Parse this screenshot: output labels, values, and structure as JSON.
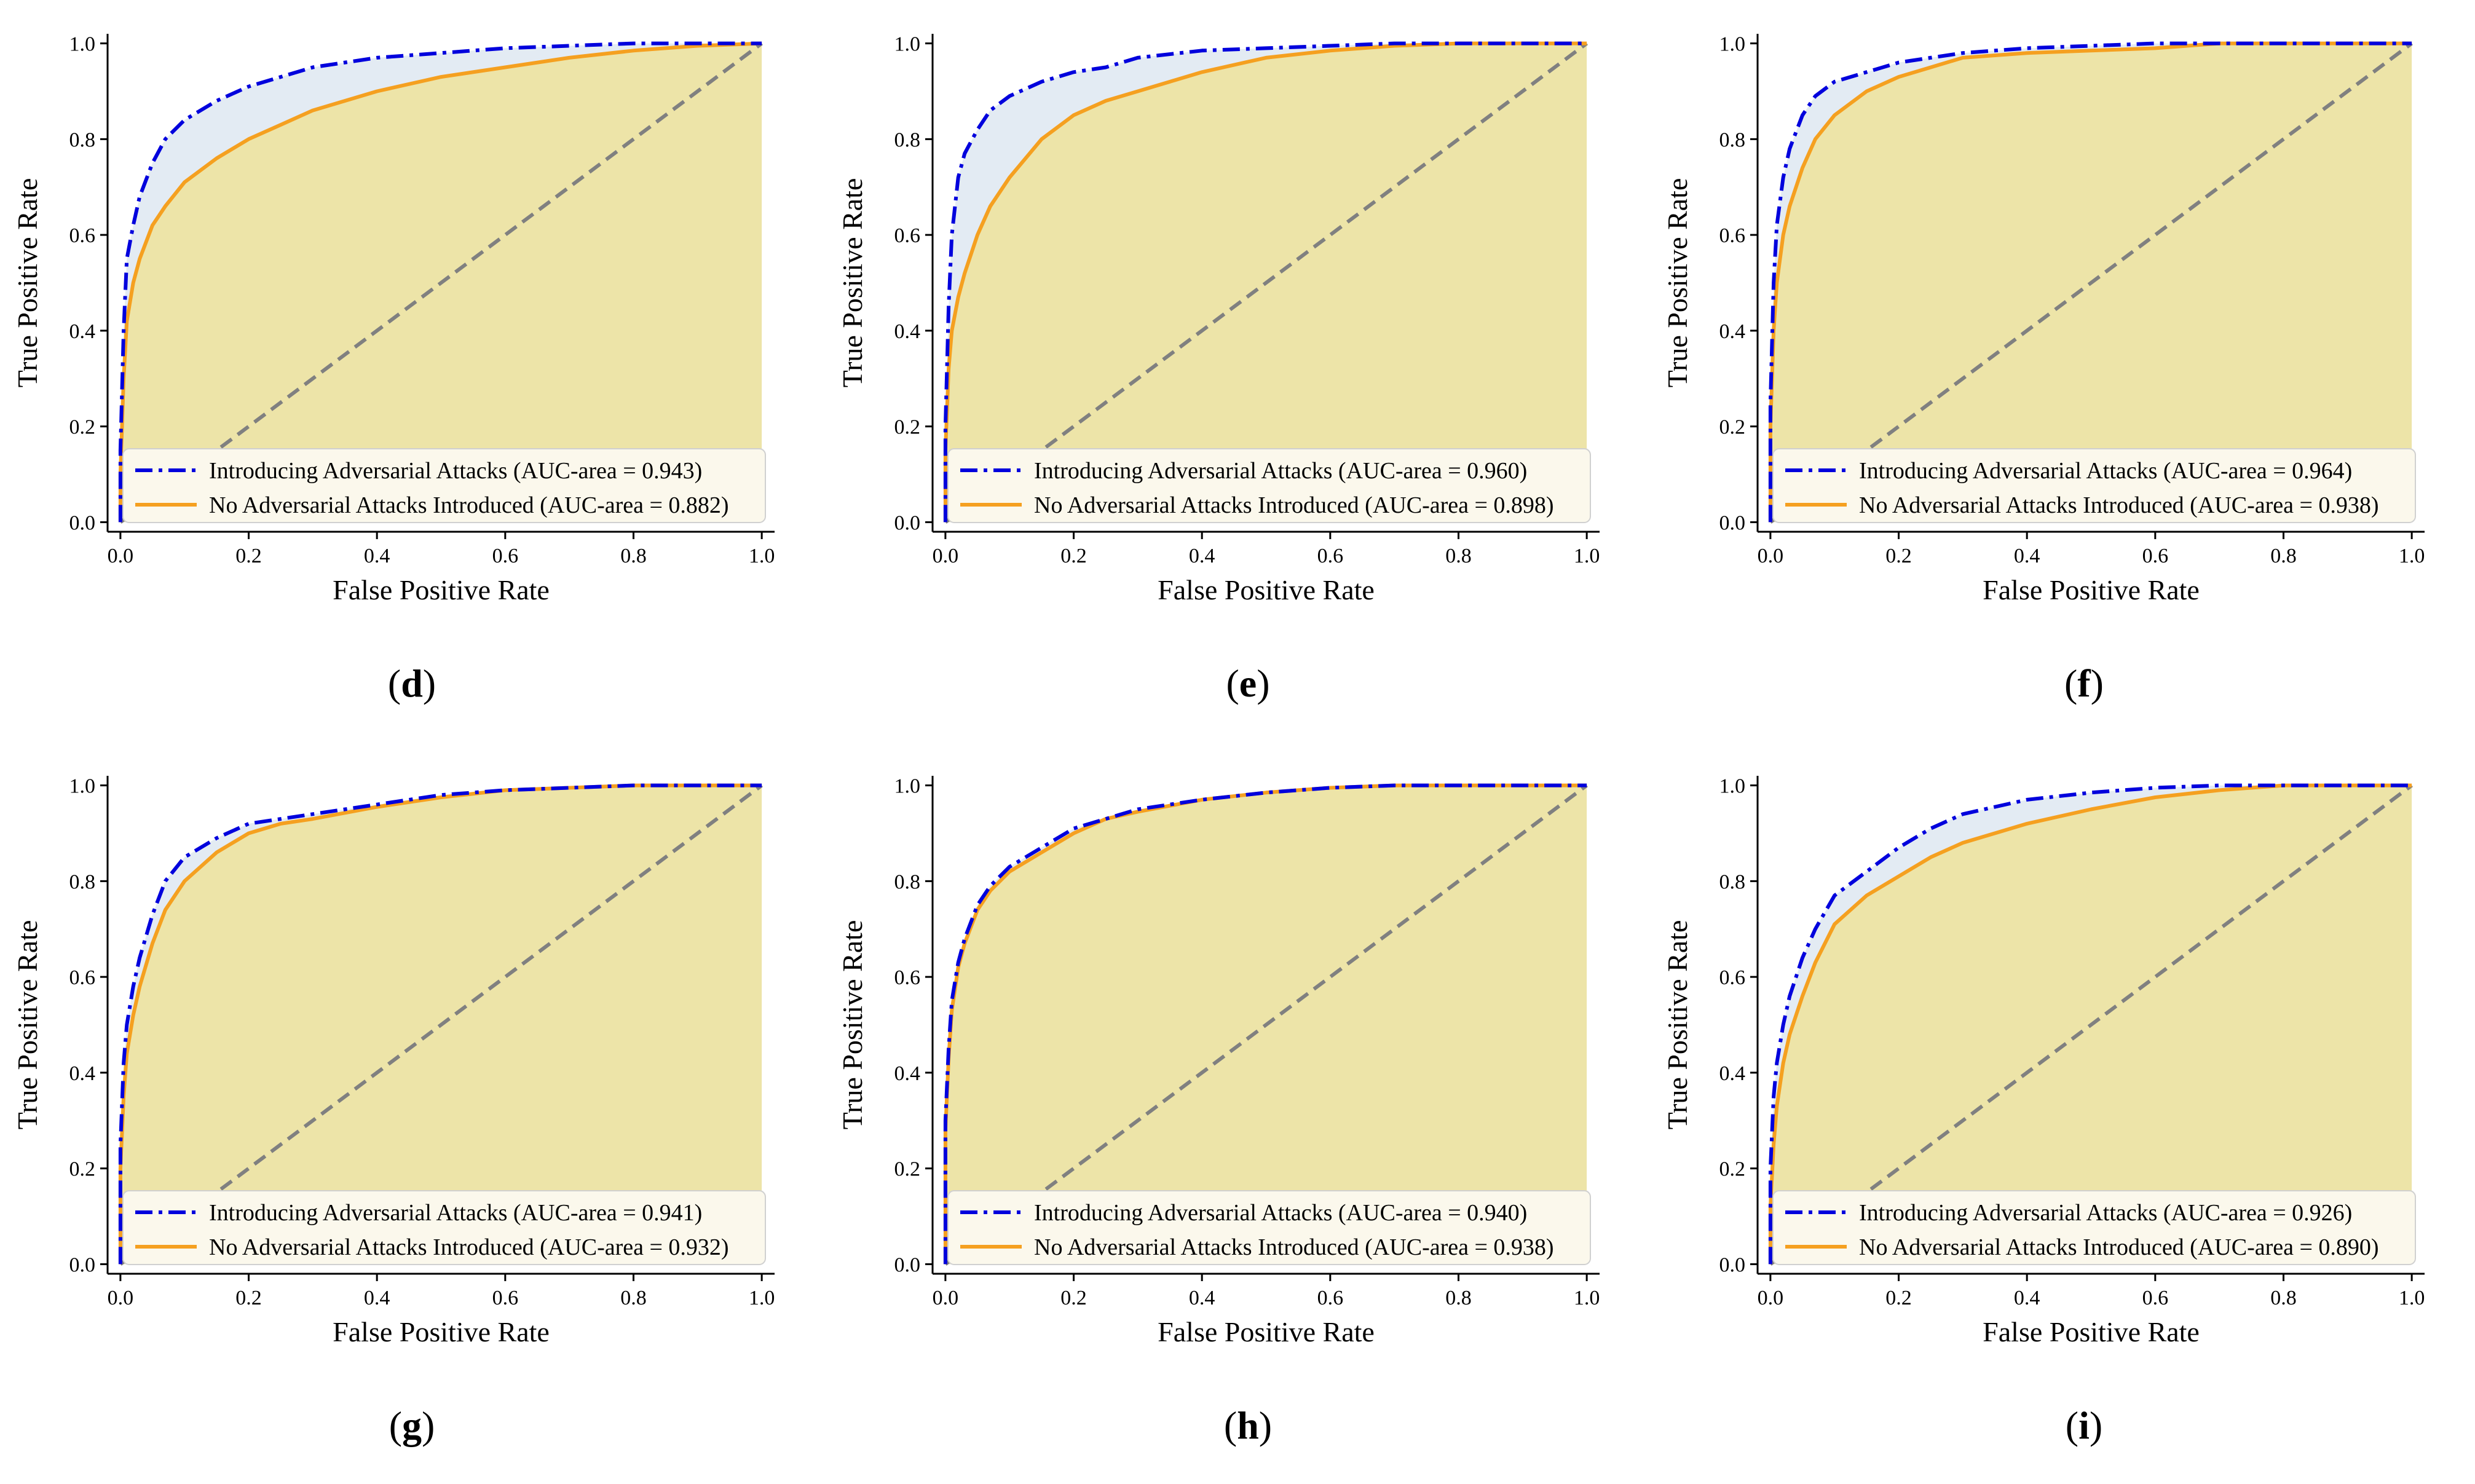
{
  "chart_data": [
    {
      "type": "line",
      "panel": "d",
      "xlabel": "False Positive Rate",
      "ylabel": "True Positive Rate",
      "xlim": [
        0,
        1
      ],
      "ylim": [
        0,
        1
      ],
      "xticks": [
        "0.0",
        "0.2",
        "0.4",
        "0.6",
        "0.8",
        "1.0"
      ],
      "yticks": [
        "0.0",
        "0.2",
        "0.4",
        "0.6",
        "0.8",
        "1.0"
      ],
      "legend_position": "bottom-right",
      "series": [
        {
          "name": "Introducing Adversarial Attacks (AUC-area = 0.943)",
          "color": "#0000dd",
          "style": "dashdot",
          "x": [
            0,
            0,
            0.005,
            0.01,
            0.02,
            0.03,
            0.05,
            0.07,
            0.1,
            0.15,
            0.2,
            0.25,
            0.3,
            0.4,
            0.5,
            0.6,
            0.7,
            0.8,
            0.9,
            1.0
          ],
          "y": [
            0,
            0.15,
            0.4,
            0.55,
            0.62,
            0.68,
            0.75,
            0.8,
            0.84,
            0.88,
            0.91,
            0.93,
            0.95,
            0.97,
            0.98,
            0.99,
            0.995,
            1.0,
            1.0,
            1.0
          ]
        },
        {
          "name": "No Adversarial Attacks Introduced (AUC-area = 0.882)",
          "color": "#f5a020",
          "style": "solid",
          "x": [
            0,
            0,
            0.005,
            0.01,
            0.02,
            0.03,
            0.05,
            0.07,
            0.1,
            0.15,
            0.2,
            0.25,
            0.3,
            0.4,
            0.5,
            0.6,
            0.7,
            0.8,
            0.9,
            1.0
          ],
          "y": [
            0,
            0.1,
            0.3,
            0.42,
            0.5,
            0.55,
            0.62,
            0.66,
            0.71,
            0.76,
            0.8,
            0.83,
            0.86,
            0.9,
            0.93,
            0.95,
            0.97,
            0.985,
            0.995,
            1.0
          ]
        }
      ]
    },
    {
      "type": "line",
      "panel": "e",
      "xlabel": "False Positive Rate",
      "ylabel": "True Positive Rate",
      "xlim": [
        0,
        1
      ],
      "ylim": [
        0,
        1
      ],
      "xticks": [
        "0.0",
        "0.2",
        "0.4",
        "0.6",
        "0.8",
        "1.0"
      ],
      "yticks": [
        "0.0",
        "0.2",
        "0.4",
        "0.6",
        "0.8",
        "1.0"
      ],
      "legend_position": "bottom-right",
      "series": [
        {
          "name": "Introducing Adversarial Attacks (AUC-area = 0.960)",
          "color": "#0000dd",
          "style": "dashdot",
          "x": [
            0,
            0,
            0.005,
            0.01,
            0.02,
            0.03,
            0.05,
            0.07,
            0.1,
            0.15,
            0.2,
            0.25,
            0.3,
            0.4,
            0.5,
            0.6,
            0.7,
            0.8,
            0.9,
            1.0
          ],
          "y": [
            0,
            0.2,
            0.45,
            0.6,
            0.72,
            0.77,
            0.82,
            0.86,
            0.89,
            0.92,
            0.94,
            0.95,
            0.97,
            0.985,
            0.99,
            0.995,
            1.0,
            1.0,
            1.0,
            1.0
          ]
        },
        {
          "name": "No Adversarial Attacks Introduced (AUC-area = 0.898)",
          "color": "#f5a020",
          "style": "solid",
          "x": [
            0,
            0,
            0.005,
            0.01,
            0.02,
            0.03,
            0.05,
            0.07,
            0.1,
            0.15,
            0.2,
            0.25,
            0.3,
            0.4,
            0.5,
            0.6,
            0.7,
            0.8,
            0.9,
            1.0
          ],
          "y": [
            0,
            0.15,
            0.32,
            0.4,
            0.47,
            0.52,
            0.6,
            0.66,
            0.72,
            0.8,
            0.85,
            0.88,
            0.9,
            0.94,
            0.97,
            0.985,
            0.995,
            1.0,
            1.0,
            1.0
          ]
        }
      ]
    },
    {
      "type": "line",
      "panel": "f",
      "xlabel": "False Positive Rate",
      "ylabel": "True Positive Rate",
      "xlim": [
        0,
        1
      ],
      "ylim": [
        0,
        1
      ],
      "xticks": [
        "0.0",
        "0.2",
        "0.4",
        "0.6",
        "0.8",
        "1.0"
      ],
      "yticks": [
        "0.0",
        "0.2",
        "0.4",
        "0.6",
        "0.8",
        "1.0"
      ],
      "legend_position": "bottom-right",
      "series": [
        {
          "name": "Introducing Adversarial Attacks (AUC-area = 0.964)",
          "color": "#0000dd",
          "style": "dashdot",
          "x": [
            0,
            0,
            0.005,
            0.01,
            0.02,
            0.03,
            0.05,
            0.07,
            0.1,
            0.15,
            0.2,
            0.25,
            0.3,
            0.4,
            0.5,
            0.6,
            0.7,
            0.8,
            0.9,
            1.0
          ],
          "y": [
            0,
            0.25,
            0.5,
            0.62,
            0.72,
            0.78,
            0.85,
            0.89,
            0.92,
            0.94,
            0.96,
            0.97,
            0.98,
            0.99,
            0.995,
            1.0,
            1.0,
            1.0,
            1.0,
            1.0
          ]
        },
        {
          "name": "No Adversarial Attacks Introduced (AUC-area = 0.938)",
          "color": "#f5a020",
          "style": "solid",
          "x": [
            0,
            0,
            0.005,
            0.01,
            0.02,
            0.03,
            0.05,
            0.07,
            0.1,
            0.15,
            0.2,
            0.25,
            0.3,
            0.4,
            0.5,
            0.6,
            0.7,
            0.8,
            0.9,
            1.0
          ],
          "y": [
            0,
            0.2,
            0.4,
            0.5,
            0.6,
            0.66,
            0.74,
            0.8,
            0.85,
            0.9,
            0.93,
            0.95,
            0.97,
            0.98,
            0.985,
            0.99,
            1.0,
            1.0,
            1.0,
            1.0
          ]
        }
      ]
    },
    {
      "type": "line",
      "panel": "g",
      "xlabel": "False Positive Rate",
      "ylabel": "True Positive Rate",
      "xlim": [
        0,
        1
      ],
      "ylim": [
        0,
        1
      ],
      "xticks": [
        "0.0",
        "0.2",
        "0.4",
        "0.6",
        "0.8",
        "1.0"
      ],
      "yticks": [
        "0.0",
        "0.2",
        "0.4",
        "0.6",
        "0.8",
        "1.0"
      ],
      "legend_position": "bottom-right",
      "series": [
        {
          "name": "Introducing Adversarial Attacks (AUC-area = 0.941)",
          "color": "#0000dd",
          "style": "dashdot",
          "x": [
            0,
            0,
            0.005,
            0.01,
            0.02,
            0.03,
            0.05,
            0.07,
            0.1,
            0.15,
            0.2,
            0.25,
            0.3,
            0.4,
            0.5,
            0.6,
            0.7,
            0.8,
            0.9,
            1.0
          ],
          "y": [
            0,
            0.25,
            0.42,
            0.5,
            0.58,
            0.64,
            0.73,
            0.8,
            0.85,
            0.89,
            0.92,
            0.93,
            0.94,
            0.96,
            0.98,
            0.99,
            0.995,
            1.0,
            1.0,
            1.0
          ]
        },
        {
          "name": "No Adversarial Attacks Introduced (AUC-area = 0.932)",
          "color": "#f5a020",
          "style": "solid",
          "x": [
            0,
            0,
            0.005,
            0.01,
            0.02,
            0.03,
            0.05,
            0.07,
            0.1,
            0.15,
            0.2,
            0.25,
            0.3,
            0.4,
            0.5,
            0.6,
            0.7,
            0.8,
            0.9,
            1.0
          ],
          "y": [
            0,
            0.2,
            0.35,
            0.44,
            0.52,
            0.58,
            0.67,
            0.74,
            0.8,
            0.86,
            0.9,
            0.92,
            0.93,
            0.955,
            0.975,
            0.99,
            0.995,
            1.0,
            1.0,
            1.0
          ]
        }
      ]
    },
    {
      "type": "line",
      "panel": "h",
      "xlabel": "False Positive Rate",
      "ylabel": "True Positive Rate",
      "xlim": [
        0,
        1
      ],
      "ylim": [
        0,
        1
      ],
      "xticks": [
        "0.0",
        "0.2",
        "0.4",
        "0.6",
        "0.8",
        "1.0"
      ],
      "yticks": [
        "0.0",
        "0.2",
        "0.4",
        "0.6",
        "0.8",
        "1.0"
      ],
      "legend_position": "bottom-right",
      "series": [
        {
          "name": "Introducing Adversarial Attacks (AUC-area = 0.940)",
          "color": "#0000dd",
          "style": "dashdot",
          "x": [
            0,
            0,
            0.005,
            0.01,
            0.02,
            0.03,
            0.05,
            0.07,
            0.1,
            0.15,
            0.2,
            0.25,
            0.3,
            0.4,
            0.5,
            0.6,
            0.7,
            0.8,
            0.9,
            1.0
          ],
          "y": [
            0,
            0.3,
            0.45,
            0.55,
            0.63,
            0.68,
            0.75,
            0.79,
            0.83,
            0.87,
            0.91,
            0.93,
            0.95,
            0.97,
            0.985,
            0.995,
            1.0,
            1.0,
            1.0,
            1.0
          ]
        },
        {
          "name": "No Adversarial Attacks Introduced (AUC-area = 0.938)",
          "color": "#f5a020",
          "style": "solid",
          "x": [
            0,
            0,
            0.005,
            0.01,
            0.02,
            0.03,
            0.05,
            0.07,
            0.1,
            0.15,
            0.2,
            0.25,
            0.3,
            0.4,
            0.5,
            0.6,
            0.7,
            0.8,
            0.9,
            1.0
          ],
          "y": [
            0,
            0.28,
            0.43,
            0.53,
            0.62,
            0.67,
            0.74,
            0.78,
            0.82,
            0.86,
            0.9,
            0.93,
            0.945,
            0.97,
            0.985,
            0.995,
            1.0,
            1.0,
            1.0,
            1.0
          ]
        }
      ]
    },
    {
      "type": "line",
      "panel": "i",
      "xlabel": "False Positive Rate",
      "ylabel": "True Positive Rate",
      "xlim": [
        0,
        1
      ],
      "ylim": [
        0,
        1
      ],
      "xticks": [
        "0.0",
        "0.2",
        "0.4",
        "0.6",
        "0.8",
        "1.0"
      ],
      "yticks": [
        "0.0",
        "0.2",
        "0.4",
        "0.6",
        "0.8",
        "1.0"
      ],
      "legend_position": "bottom-right",
      "series": [
        {
          "name": "Introducing Adversarial Attacks (AUC-area = 0.926)",
          "color": "#0000dd",
          "style": "dashdot",
          "x": [
            0,
            0,
            0.005,
            0.01,
            0.02,
            0.03,
            0.05,
            0.07,
            0.1,
            0.15,
            0.2,
            0.25,
            0.3,
            0.4,
            0.5,
            0.6,
            0.7,
            0.8,
            0.9,
            1.0
          ],
          "y": [
            0,
            0.2,
            0.35,
            0.42,
            0.5,
            0.56,
            0.64,
            0.7,
            0.77,
            0.82,
            0.87,
            0.91,
            0.94,
            0.97,
            0.985,
            0.995,
            1.0,
            1.0,
            1.0,
            1.0
          ]
        },
        {
          "name": "No Adversarial Attacks Introduced (AUC-area = 0.890)",
          "color": "#f5a020",
          "style": "solid",
          "x": [
            0,
            0,
            0.005,
            0.01,
            0.02,
            0.03,
            0.05,
            0.07,
            0.1,
            0.15,
            0.2,
            0.25,
            0.3,
            0.4,
            0.5,
            0.6,
            0.7,
            0.8,
            0.9,
            1.0
          ],
          "y": [
            0,
            0.12,
            0.25,
            0.33,
            0.42,
            0.48,
            0.56,
            0.63,
            0.71,
            0.77,
            0.81,
            0.85,
            0.88,
            0.92,
            0.95,
            0.975,
            0.99,
            1.0,
            1.0,
            1.0
          ]
        }
      ]
    }
  ],
  "captions": [
    "d",
    "e",
    "f",
    "g",
    "h",
    "i"
  ],
  "colors": {
    "fill_primary": "#ede4a8",
    "fill_gap": "#e3ebf3",
    "diagonal": "#808080",
    "legend_bg": "#fbf8ec"
  }
}
